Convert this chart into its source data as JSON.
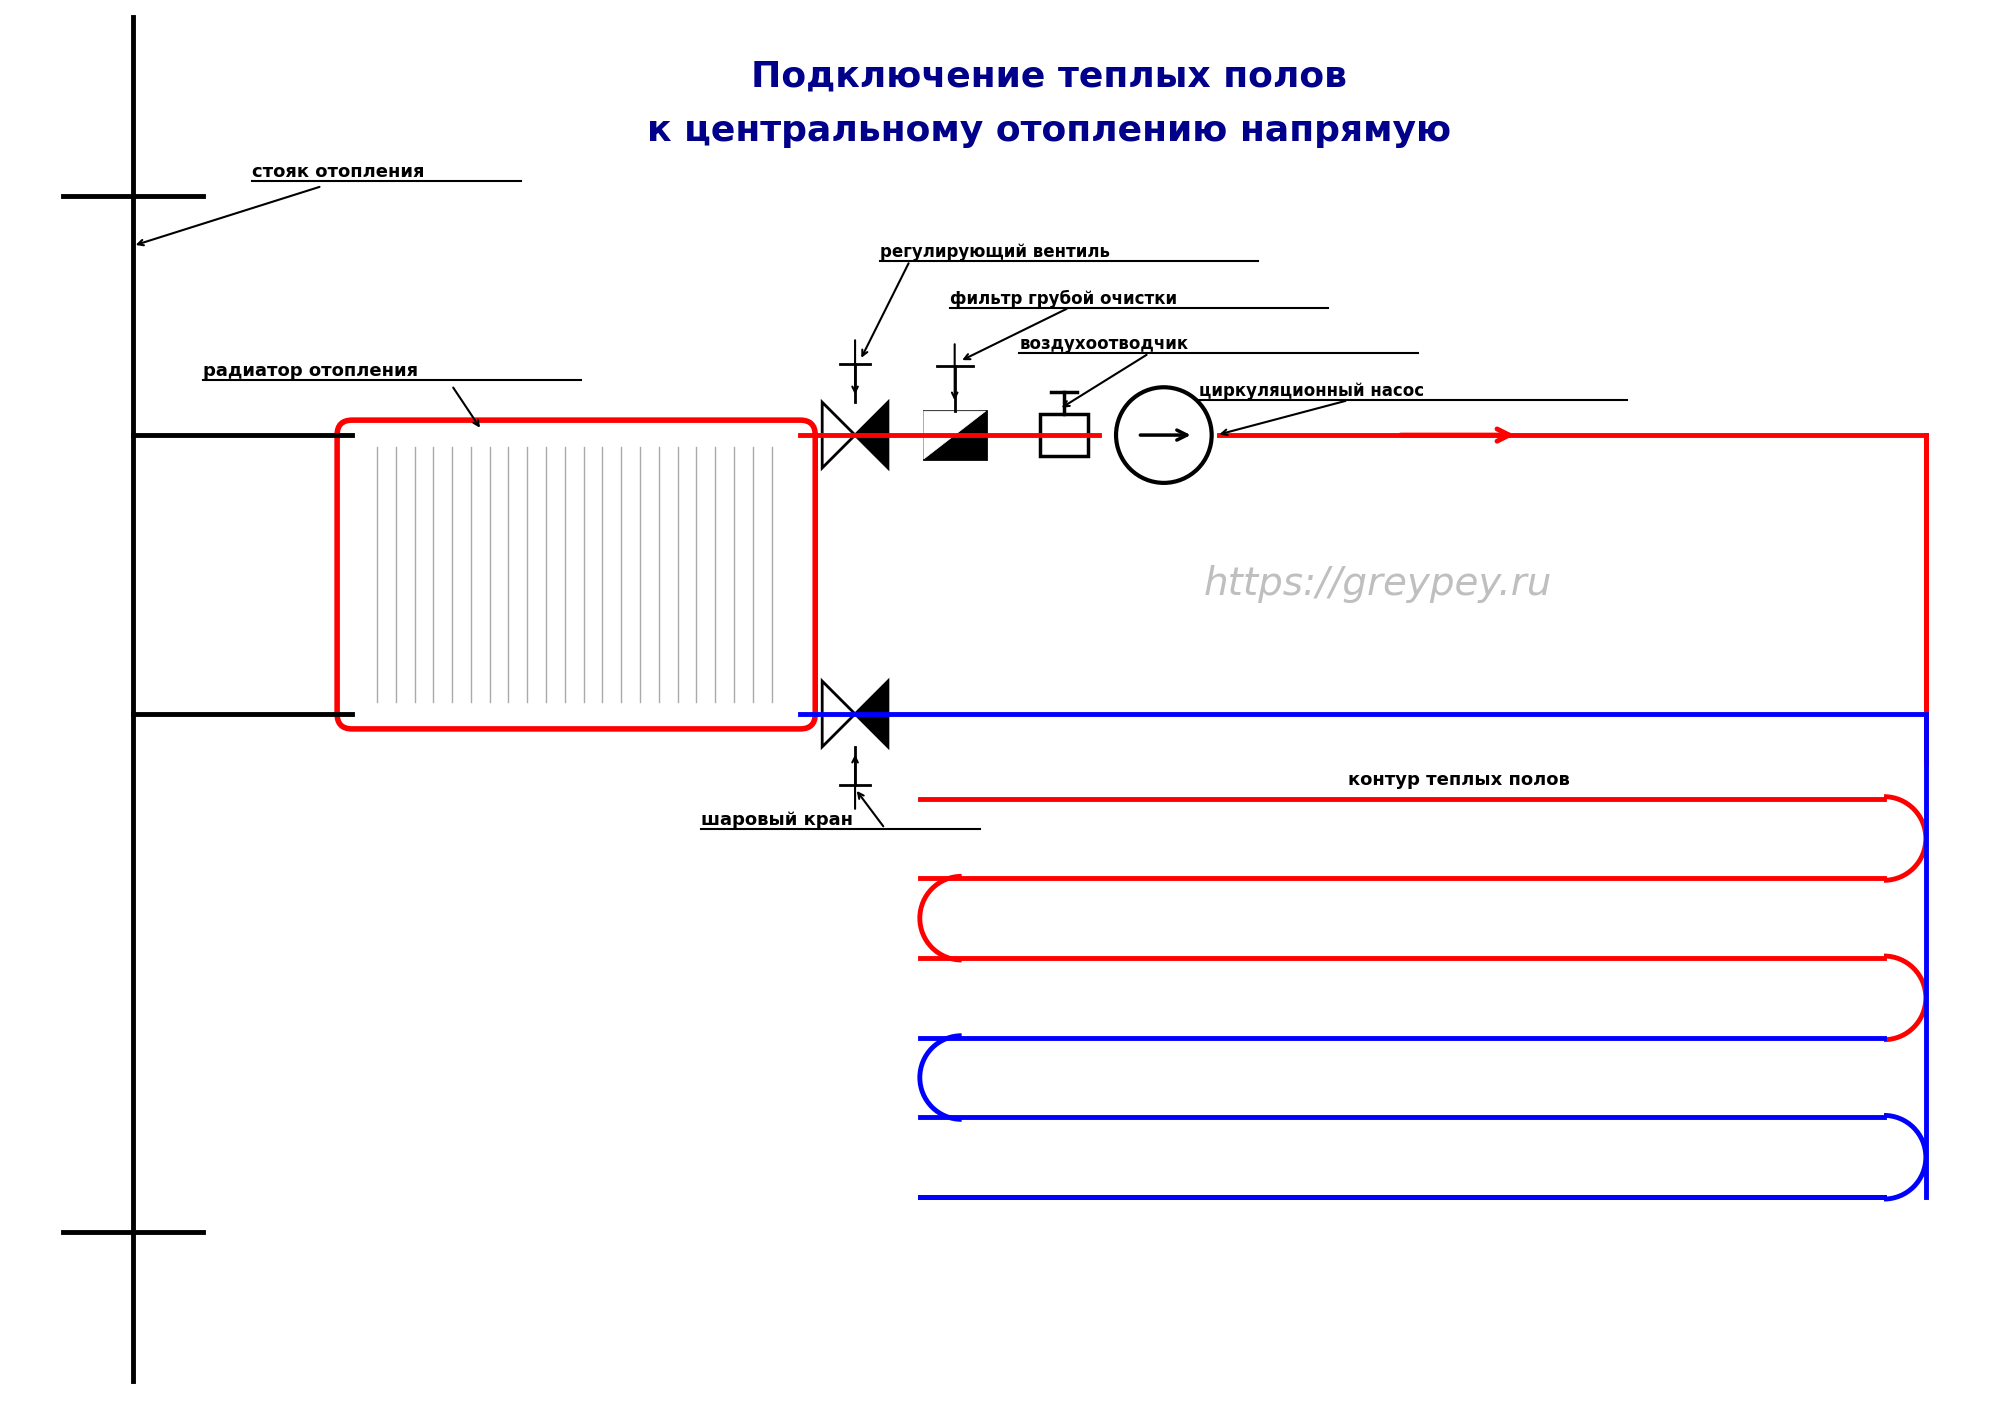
{
  "title_line1": "Подключение теплых полов",
  "title_line2": "к центральному отоплению напрямую",
  "title_color": "#00008B",
  "title_fontsize": 26,
  "watermark": "https://greypey.ru",
  "watermark_color": "#aaaaaa",
  "watermark_fontsize": 28,
  "bg_color": "#ffffff",
  "label_stoyak": "стояк отопления",
  "label_radiator": "радиатор отопления",
  "label_ventil": "регулирующий вентиль",
  "label_filter": "фильтр грубой очистки",
  "label_air": "воздухоотводчик",
  "label_pump": "циркуляционный насос",
  "label_kran": "шаровый кран",
  "label_kontur": "контур теплых полов",
  "red_color": "#FF0000",
  "blue_color": "#0000FF",
  "black_color": "#000000"
}
